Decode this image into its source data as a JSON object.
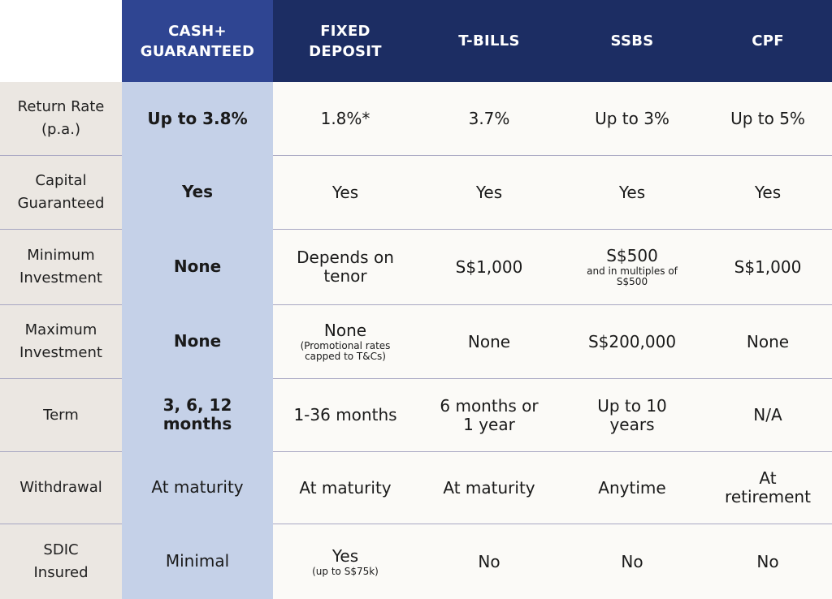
{
  "header": {
    "columns": [
      "CASH+\nGUARANTEED",
      "FIXED\nDEPOSIT",
      "T-BILLS",
      "SSBS",
      "CPF"
    ]
  },
  "rows": [
    {
      "label": "Return Rate\n(p.a.)",
      "cells": [
        {
          "main": "Up to 3.8%"
        },
        {
          "main": "1.8%*"
        },
        {
          "main": "3.7%"
        },
        {
          "main": "Up to 3%"
        },
        {
          "main": "Up to 5%"
        }
      ]
    },
    {
      "label": "Capital\nGuaranteed",
      "cells": [
        {
          "main": "Yes"
        },
        {
          "main": "Yes"
        },
        {
          "main": "Yes"
        },
        {
          "main": "Yes"
        },
        {
          "main": "Yes"
        }
      ]
    },
    {
      "label": "Minimum\nInvestment",
      "cells": [
        {
          "main": "None"
        },
        {
          "main": "Depends on\ntenor"
        },
        {
          "main": "S$1,000"
        },
        {
          "main": "S$500",
          "sub": "and in multiples of\nS$500"
        },
        {
          "main": "S$1,000"
        }
      ]
    },
    {
      "label": "Maximum\nInvestment",
      "cells": [
        {
          "main": "None"
        },
        {
          "main": "None",
          "sub": "(Promotional rates\ncapped to T&Cs)"
        },
        {
          "main": "None"
        },
        {
          "main": "S$200,000"
        },
        {
          "main": "None"
        }
      ]
    },
    {
      "label": "Term",
      "cells": [
        {
          "main": "3, 6, 12\nmonths"
        },
        {
          "main": "1-36 months"
        },
        {
          "main": "6 months or\n1 year"
        },
        {
          "main": "Up to 10\nyears"
        },
        {
          "main": "N/A"
        }
      ]
    },
    {
      "label": "Withdrawal",
      "cells": [
        {
          "main": "At maturity"
        },
        {
          "main": "At maturity"
        },
        {
          "main": "At maturity"
        },
        {
          "main": "Anytime"
        },
        {
          "main": "At\nretirement"
        }
      ]
    },
    {
      "label": "SDIC\nInsured",
      "cells": [
        {
          "main": "Minimal"
        },
        {
          "main": "Yes",
          "sub": "(up to S$75k)"
        },
        {
          "main": "No"
        },
        {
          "main": "No"
        },
        {
          "main": "No"
        }
      ]
    }
  ],
  "colors": {
    "header_bg": "#1c2d63",
    "header_highlight_bg": "#2f4592",
    "highlight_col_bg": "#c5d1e8",
    "label_col_bg": "#ebe7e2",
    "cell_bg": "#fbfaf7"
  }
}
